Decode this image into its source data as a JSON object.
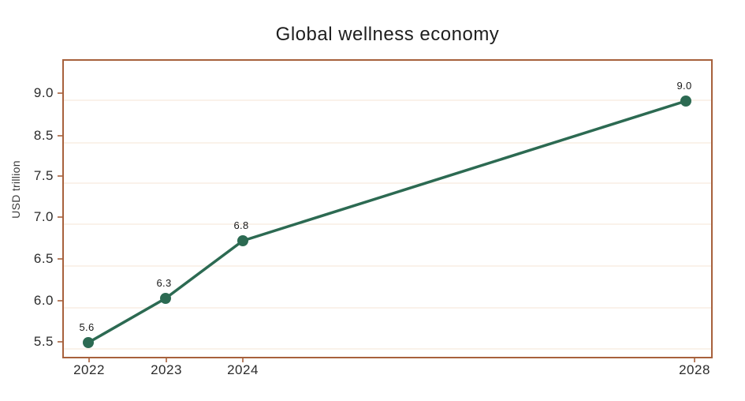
{
  "title": "Global wellness economy",
  "chart_data": {
    "type": "line",
    "title": "Global wellness economy",
    "xlabel": "",
    "ylabel": "USD trillion",
    "categories": [
      "2022",
      "2023",
      "2024",
      "2028"
    ],
    "series": [
      {
        "name": "Global wellness economy",
        "values": [
          5.6,
          6.3,
          6.8,
          9.0
        ]
      }
    ],
    "point_labels": [
      "5.6",
      "6.3",
      "6.8",
      "9.0"
    ],
    "y_tick_labels": [
      "9.0",
      "8.5",
      "7.5",
      "7.0",
      "6.5",
      "6.0",
      "5.5"
    ],
    "ylim": [
      5.3,
      9.4
    ],
    "grid": "horizontal",
    "legend_position": "none",
    "colors": {
      "line": "#2c6a52",
      "marker": "#2c6a52",
      "plot_border": "#a7613c",
      "gridline": "#f8e9de",
      "title_text": "#1e1e1e",
      "tick_text": "#2b2b2b",
      "background": "#ffffff"
    }
  }
}
